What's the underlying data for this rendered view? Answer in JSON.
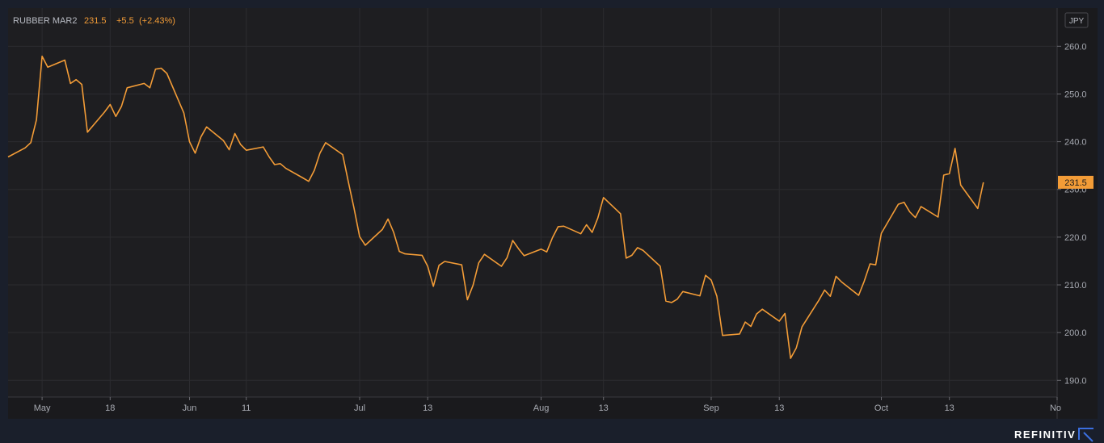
{
  "legend": {
    "instrument": "RUBBER MAR2",
    "last": "231.5",
    "change": "+5.5",
    "change_pct": "(+2.43%)"
  },
  "currency": "JPY",
  "last_price_label": "231.5",
  "brand": "REFINITIV",
  "colors": {
    "line": "#f39c37",
    "plot_bg": "#1e1e21",
    "outer_bg": "#1a1f2b",
    "grid": "#2c2c30"
  },
  "chart_data": {
    "type": "line",
    "title": "RUBBER MAR2",
    "ylim": [
      186.5,
      268
    ],
    "y_ticks": [
      "190.0",
      "200.0",
      "210.0",
      "220.0",
      "230.0",
      "240.0",
      "250.0",
      "260.0"
    ],
    "y_tick_values": [
      190,
      200,
      210,
      220,
      230,
      240,
      250,
      260
    ],
    "x_ticks": [
      {
        "label": "May",
        "date": "2021-05-06"
      },
      {
        "label": "18",
        "date": "2021-05-18"
      },
      {
        "label": "Jun",
        "date": "2021-06-01"
      },
      {
        "label": "11",
        "date": "2021-06-11"
      },
      {
        "label": "Jul",
        "date": "2021-07-01"
      },
      {
        "label": "13",
        "date": "2021-07-13"
      },
      {
        "label": "Aug",
        "date": "2021-08-02"
      },
      {
        "label": "13",
        "date": "2021-08-13"
      },
      {
        "label": "Sep",
        "date": "2021-09-01"
      },
      {
        "label": "13",
        "date": "2021-09-13"
      },
      {
        "label": "Oct",
        "date": "2021-10-01"
      },
      {
        "label": "13",
        "date": "2021-10-13"
      },
      {
        "label": "No",
        "date": "2021-11-01"
      }
    ],
    "xlim": [
      "2021-04-30",
      "2021-11-01"
    ],
    "series": [
      {
        "name": "RUBBER MAR2",
        "points": [
          [
            "2021-04-30",
            236.8
          ],
          [
            "2021-05-03",
            238.7
          ],
          [
            "2021-05-04",
            239.8
          ],
          [
            "2021-05-05",
            244.6
          ],
          [
            "2021-05-06",
            257.9
          ],
          [
            "2021-05-07",
            255.6
          ],
          [
            "2021-05-10",
            257.1
          ],
          [
            "2021-05-11",
            252.2
          ],
          [
            "2021-05-12",
            253.0
          ],
          [
            "2021-05-13",
            252.0
          ],
          [
            "2021-05-14",
            242.0
          ],
          [
            "2021-05-17",
            246.2
          ],
          [
            "2021-05-18",
            247.8
          ],
          [
            "2021-05-19",
            245.3
          ],
          [
            "2021-05-20",
            247.4
          ],
          [
            "2021-05-21",
            251.3
          ],
          [
            "2021-05-24",
            252.2
          ],
          [
            "2021-05-25",
            251.3
          ],
          [
            "2021-05-26",
            255.2
          ],
          [
            "2021-05-27",
            255.4
          ],
          [
            "2021-05-28",
            254.3
          ],
          [
            "2021-05-31",
            246.0
          ],
          [
            "2021-06-01",
            240.0
          ],
          [
            "2021-06-02",
            237.6
          ],
          [
            "2021-06-03",
            241.0
          ],
          [
            "2021-06-04",
            243.1
          ],
          [
            "2021-06-07",
            240.2
          ],
          [
            "2021-06-08",
            238.3
          ],
          [
            "2021-06-09",
            241.7
          ],
          [
            "2021-06-10",
            239.4
          ],
          [
            "2021-06-11",
            238.2
          ],
          [
            "2021-06-14",
            238.9
          ],
          [
            "2021-06-15",
            236.9
          ],
          [
            "2021-06-16",
            235.2
          ],
          [
            "2021-06-17",
            235.4
          ],
          [
            "2021-06-18",
            234.4
          ],
          [
            "2021-06-21",
            232.4
          ],
          [
            "2021-06-22",
            231.7
          ],
          [
            "2021-06-23",
            234.0
          ],
          [
            "2021-06-24",
            237.6
          ],
          [
            "2021-06-25",
            239.8
          ],
          [
            "2021-06-28",
            237.3
          ],
          [
            "2021-06-29",
            231.6
          ],
          [
            "2021-06-30",
            226.1
          ],
          [
            "2021-07-01",
            220.1
          ],
          [
            "2021-07-02",
            218.3
          ],
          [
            "2021-07-05",
            221.6
          ],
          [
            "2021-07-06",
            223.8
          ],
          [
            "2021-07-07",
            221.0
          ],
          [
            "2021-07-08",
            217.0
          ],
          [
            "2021-07-09",
            216.5
          ],
          [
            "2021-07-12",
            216.2
          ],
          [
            "2021-07-13",
            213.9
          ],
          [
            "2021-07-14",
            209.7
          ],
          [
            "2021-07-15",
            214.1
          ],
          [
            "2021-07-16",
            214.9
          ],
          [
            "2021-07-19",
            214.2
          ],
          [
            "2021-07-20",
            206.9
          ],
          [
            "2021-07-21",
            209.9
          ],
          [
            "2021-07-22",
            214.6
          ],
          [
            "2021-07-23",
            216.4
          ],
          [
            "2021-07-26",
            213.9
          ],
          [
            "2021-07-27",
            215.7
          ],
          [
            "2021-07-28",
            219.3
          ],
          [
            "2021-07-29",
            217.6
          ],
          [
            "2021-07-30",
            216.1
          ],
          [
            "2021-08-02",
            217.5
          ],
          [
            "2021-08-03",
            216.9
          ],
          [
            "2021-08-04",
            219.9
          ],
          [
            "2021-08-05",
            222.2
          ],
          [
            "2021-08-06",
            222.3
          ],
          [
            "2021-08-09",
            220.7
          ],
          [
            "2021-08-10",
            222.6
          ],
          [
            "2021-08-11",
            221.0
          ],
          [
            "2021-08-12",
            224.0
          ],
          [
            "2021-08-13",
            228.3
          ],
          [
            "2021-08-16",
            224.9
          ],
          [
            "2021-08-17",
            215.6
          ],
          [
            "2021-08-18",
            216.2
          ],
          [
            "2021-08-19",
            217.8
          ],
          [
            "2021-08-20",
            217.2
          ],
          [
            "2021-08-23",
            213.9
          ],
          [
            "2021-08-24",
            206.6
          ],
          [
            "2021-08-25",
            206.3
          ],
          [
            "2021-08-26",
            207.0
          ],
          [
            "2021-08-27",
            208.6
          ],
          [
            "2021-08-30",
            207.7
          ],
          [
            "2021-08-31",
            212.0
          ],
          [
            "2021-09-01",
            211.0
          ],
          [
            "2021-09-02",
            207.6
          ],
          [
            "2021-09-03",
            199.4
          ],
          [
            "2021-09-06",
            199.7
          ],
          [
            "2021-09-07",
            202.2
          ],
          [
            "2021-09-08",
            201.3
          ],
          [
            "2021-09-09",
            203.9
          ],
          [
            "2021-09-10",
            204.9
          ],
          [
            "2021-09-13",
            202.4
          ],
          [
            "2021-09-14",
            204.0
          ],
          [
            "2021-09-15",
            194.6
          ],
          [
            "2021-09-16",
            196.8
          ],
          [
            "2021-09-17",
            201.2
          ],
          [
            "2021-09-20",
            206.8
          ],
          [
            "2021-09-21",
            208.9
          ],
          [
            "2021-09-22",
            207.6
          ],
          [
            "2021-09-23",
            211.8
          ],
          [
            "2021-09-24",
            210.6
          ],
          [
            "2021-09-27",
            207.8
          ],
          [
            "2021-09-28",
            210.8
          ],
          [
            "2021-09-29",
            214.4
          ],
          [
            "2021-09-30",
            214.2
          ],
          [
            "2021-10-01",
            220.8
          ],
          [
            "2021-10-04",
            226.9
          ],
          [
            "2021-10-05",
            227.3
          ],
          [
            "2021-10-06",
            225.3
          ],
          [
            "2021-10-07",
            224.1
          ],
          [
            "2021-10-08",
            226.4
          ],
          [
            "2021-10-11",
            224.2
          ],
          [
            "2021-10-12",
            233.0
          ],
          [
            "2021-10-13",
            233.3
          ],
          [
            "2021-10-14",
            238.6
          ],
          [
            "2021-10-15",
            230.9
          ],
          [
            "2021-10-18",
            226.0
          ],
          [
            "2021-10-19",
            231.5
          ]
        ]
      }
    ],
    "grid": true,
    "y_axis_side": "right"
  }
}
